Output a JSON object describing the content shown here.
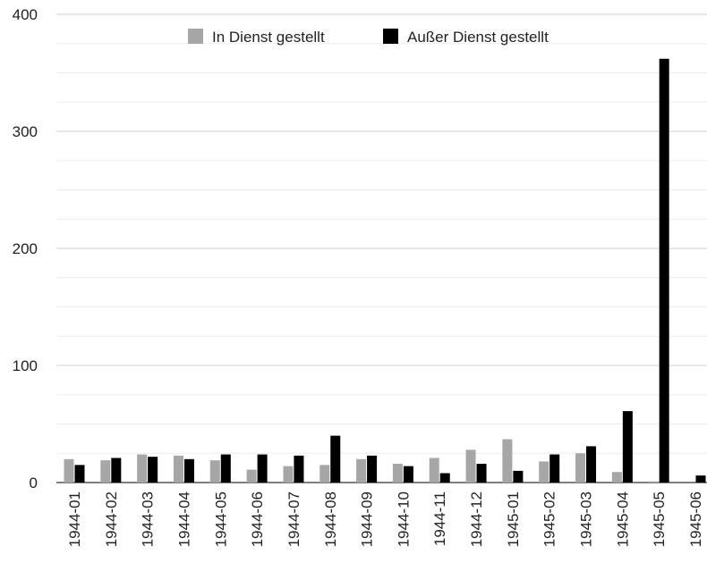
{
  "chart_data": {
    "type": "bar",
    "title": "",
    "xlabel": "",
    "ylabel": "",
    "ylim": [
      0,
      400
    ],
    "yticks": [
      0,
      100,
      200,
      300,
      400
    ],
    "grid": true,
    "legend_position": "top-center",
    "categories": [
      "1944-01",
      "1944-02",
      "1944-03",
      "1944-04",
      "1944-05",
      "1944-06",
      "1944-07",
      "1944-08",
      "1944-09",
      "1944-10",
      "1944-11",
      "1944-12",
      "1945-01",
      "1945-02",
      "1945-03",
      "1945-04",
      "1945-05",
      "1945-06"
    ],
    "series": [
      {
        "name": "In Dienst gestellt",
        "color": "#a6a6a6",
        "values": [
          20,
          19,
          24,
          23,
          19,
          11,
          14,
          15,
          20,
          16,
          21,
          28,
          37,
          18,
          25,
          9,
          1,
          0
        ]
      },
      {
        "name": "Außer Dienst gestellt",
        "color": "#000000",
        "values": [
          15,
          21,
          22,
          20,
          24,
          24,
          23,
          40,
          23,
          14,
          8,
          16,
          10,
          24,
          31,
          61,
          362,
          6
        ]
      }
    ]
  }
}
